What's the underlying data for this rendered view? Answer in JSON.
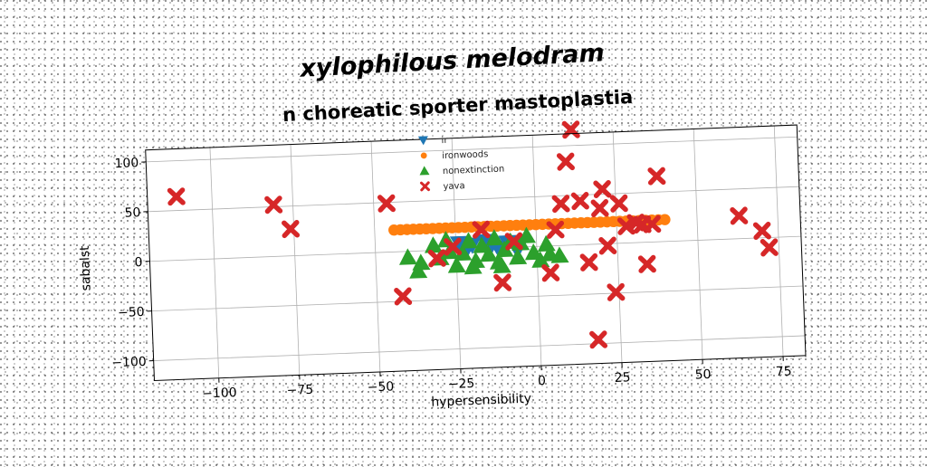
{
  "chart_data": {
    "type": "scatter",
    "suptitle": "xylophilous melodram",
    "title": "n choreatic sporter mastoplastia",
    "xlabel": "hypersensibility",
    "ylabel": "sabalst",
    "xlim": [
      -120,
      82
    ],
    "ylim": [
      -120,
      112
    ],
    "xticks": [
      -100,
      -75,
      -50,
      -25,
      0,
      25,
      50,
      75
    ],
    "yticks": [
      -100,
      -50,
      0,
      50,
      100
    ],
    "grid": true,
    "legend_position": "top-center",
    "series": [
      {
        "name": "ir",
        "marker": "triangle-down",
        "color": "#1f77b4",
        "points": [
          [
            -24,
            6
          ],
          [
            -20,
            4
          ],
          [
            -16,
            7
          ],
          [
            -12,
            0
          ],
          [
            -9,
            5
          ],
          [
            -6,
            -3
          ],
          [
            -22,
            -2
          ],
          [
            -14,
            3
          ]
        ]
      },
      {
        "name": "ironwoods",
        "marker": "circle",
        "color": "#ff7f0e",
        "points": [
          [
            -44,
            22
          ],
          [
            -42,
            22
          ],
          [
            -40,
            22
          ],
          [
            -38,
            22
          ],
          [
            -36,
            22
          ],
          [
            -34,
            22
          ],
          [
            -32,
            22
          ],
          [
            -30,
            22
          ],
          [
            -28,
            22
          ],
          [
            -26,
            22
          ],
          [
            -24,
            22
          ],
          [
            -22,
            22
          ],
          [
            -20,
            22
          ],
          [
            -18,
            22
          ],
          [
            -16,
            22
          ],
          [
            -14,
            22
          ],
          [
            -12,
            22
          ],
          [
            -10,
            22
          ],
          [
            -8,
            22
          ],
          [
            -6,
            22
          ],
          [
            -4,
            22
          ],
          [
            -2,
            22
          ],
          [
            0,
            22
          ],
          [
            2,
            22
          ],
          [
            4,
            22
          ],
          [
            6,
            22
          ],
          [
            8,
            22
          ],
          [
            10,
            22
          ],
          [
            12,
            22
          ],
          [
            14,
            22
          ],
          [
            16,
            22
          ],
          [
            18,
            22
          ],
          [
            20,
            22
          ],
          [
            22,
            22
          ],
          [
            24,
            22
          ],
          [
            26,
            22
          ],
          [
            28,
            22
          ],
          [
            30,
            22
          ],
          [
            32,
            22
          ],
          [
            34,
            22
          ],
          [
            36,
            22
          ],
          [
            38,
            22
          ],
          [
            40,
            22
          ]
        ]
      },
      {
        "name": "nonextinction",
        "marker": "triangle-up",
        "color": "#2ca02c",
        "points": [
          [
            -40,
            -6
          ],
          [
            -37,
            -20
          ],
          [
            -36,
            -12
          ],
          [
            -32,
            5
          ],
          [
            -30,
            -8
          ],
          [
            -28,
            10
          ],
          [
            -27,
            -2
          ],
          [
            -25,
            -16
          ],
          [
            -23,
            -4
          ],
          [
            -21,
            8
          ],
          [
            -19,
            -12
          ],
          [
            -17,
            3
          ],
          [
            -15,
            -6
          ],
          [
            -13,
            10
          ],
          [
            -12,
            -14
          ],
          [
            -10,
            -2
          ],
          [
            -8,
            6
          ],
          [
            -6,
            -10
          ],
          [
            -5,
            4
          ],
          [
            -3,
            11
          ],
          [
            -1,
            -6
          ],
          [
            1,
            -14
          ],
          [
            3,
            2
          ],
          [
            4,
            -8
          ],
          [
            7,
            -10
          ],
          [
            -20,
            -18
          ],
          [
            -11,
            -18
          ]
        ]
      },
      {
        "name": "yava",
        "marker": "x",
        "color": "#d62728",
        "points": [
          [
            -111,
            64
          ],
          [
            -81,
            52
          ],
          [
            -76,
            27
          ],
          [
            -46,
            49
          ],
          [
            -42,
            -45
          ],
          [
            -31,
            -8
          ],
          [
            -26,
            3
          ],
          [
            -17,
            19
          ],
          [
            -11,
            -35
          ],
          [
            -7,
            6
          ],
          [
            4,
            -27
          ],
          [
            6,
            16
          ],
          [
            8,
            42
          ],
          [
            10,
            84
          ],
          [
            12,
            116
          ],
          [
            14,
            44
          ],
          [
            16,
            -18
          ],
          [
            18,
            -96
          ],
          [
            20,
            36
          ],
          [
            21,
            55
          ],
          [
            22,
            -2
          ],
          [
            24,
            -49
          ],
          [
            26,
            40
          ],
          [
            28,
            17
          ],
          [
            31,
            20
          ],
          [
            33,
            18
          ],
          [
            34,
            -22
          ],
          [
            36,
            18
          ],
          [
            38,
            66
          ],
          [
            63,
            23
          ],
          [
            70,
            7
          ],
          [
            72,
            -10
          ]
        ]
      }
    ]
  }
}
